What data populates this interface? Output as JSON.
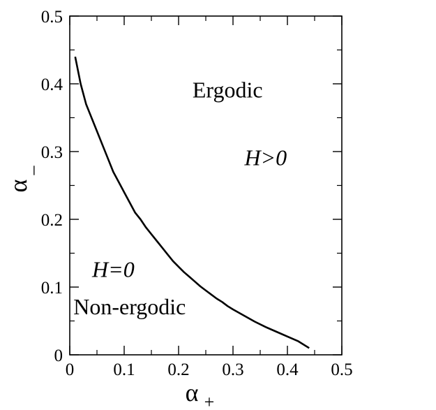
{
  "chart_data": {
    "type": "line",
    "title": "",
    "xlabel": "α",
    "xlabel_sub": "+",
    "ylabel": "α",
    "ylabel_sub": "_",
    "xlim": [
      0,
      0.5
    ],
    "ylim": [
      0,
      0.5
    ],
    "xticks": [
      "0",
      "0.1",
      "0.2",
      "0.3",
      "0.4",
      "0.5"
    ],
    "yticks": [
      "0",
      "0.1",
      "0.2",
      "0.3",
      "0.4",
      "0.5"
    ],
    "grid": false,
    "series": [
      {
        "color": "#000000",
        "x": [
          0.01,
          0.015,
          0.02,
          0.03,
          0.04,
          0.05,
          0.06,
          0.07,
          0.08,
          0.09,
          0.1,
          0.11,
          0.12,
          0.13,
          0.14,
          0.15,
          0.16,
          0.17,
          0.18,
          0.19,
          0.2,
          0.21,
          0.22,
          0.23,
          0.24,
          0.25,
          0.26,
          0.27,
          0.28,
          0.29,
          0.3,
          0.32,
          0.34,
          0.36,
          0.38,
          0.4,
          0.42,
          0.44
        ],
        "y": [
          0.44,
          0.42,
          0.4,
          0.37,
          0.35,
          0.33,
          0.31,
          0.29,
          0.27,
          0.255,
          0.24,
          0.225,
          0.21,
          0.2,
          0.188,
          0.178,
          0.168,
          0.158,
          0.148,
          0.138,
          0.13,
          0.122,
          0.115,
          0.108,
          0.101,
          0.095,
          0.089,
          0.083,
          0.078,
          0.072,
          0.067,
          0.058,
          0.049,
          0.041,
          0.034,
          0.027,
          0.02,
          0.01
        ]
      }
    ],
    "annotations": [
      {
        "text": "Ergodic",
        "x": 0.29,
        "y": 0.38,
        "style": "normal"
      },
      {
        "text": "H>0",
        "x": 0.36,
        "y": 0.28,
        "style": "italic"
      },
      {
        "text": "H=0",
        "x": 0.08,
        "y": 0.115,
        "style": "italic"
      },
      {
        "text": "Non-ergodic",
        "x": 0.11,
        "y": 0.06,
        "style": "normal"
      }
    ]
  }
}
